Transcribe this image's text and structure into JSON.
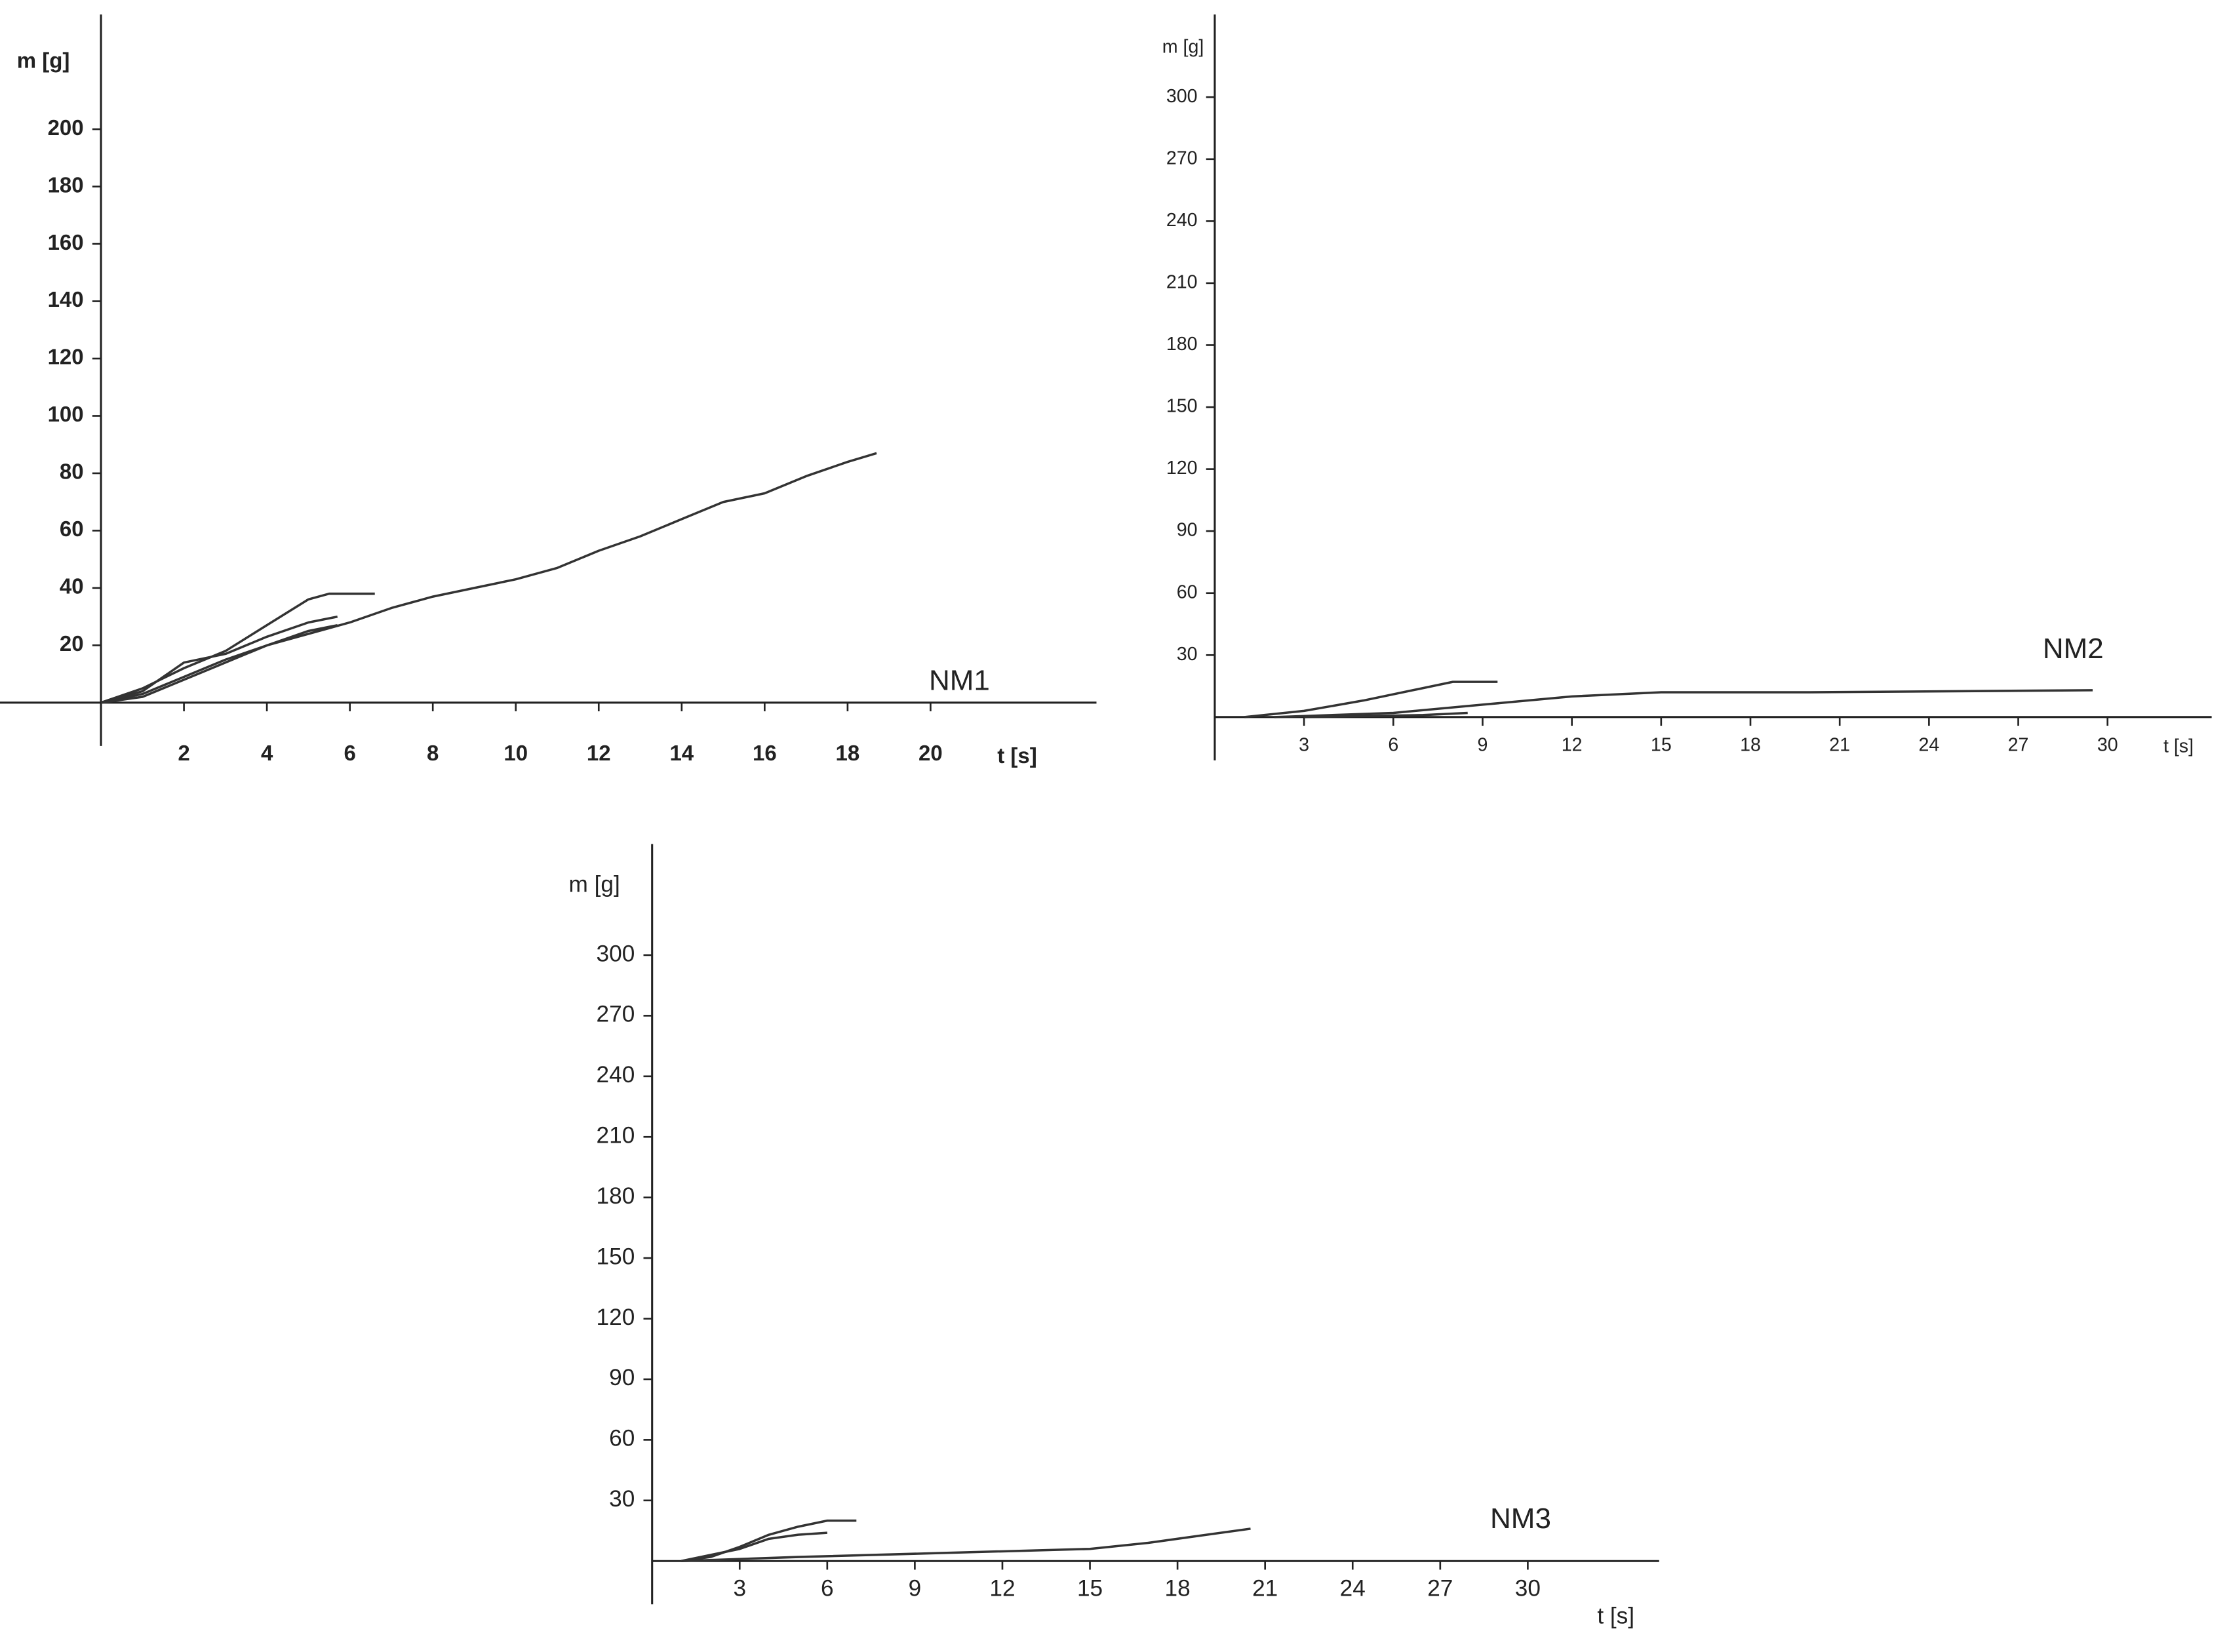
{
  "chart_data": [
    {
      "type": "line",
      "annotation": "NM1",
      "ylabel": "m [g]",
      "xlabel": "t [s]",
      "bold": true,
      "xlim": [
        0,
        24
      ],
      "ylim": [
        0,
        240
      ],
      "xticks": [
        2,
        4,
        6,
        8,
        10,
        12,
        14,
        16,
        18,
        20
      ],
      "yticks": [
        20,
        40,
        60,
        80,
        100,
        120,
        140,
        160,
        180,
        200
      ],
      "series": [
        {
          "color": "#333333",
          "x": [
            0,
            1,
            2,
            3,
            4,
            5,
            6,
            7,
            8,
            9,
            10,
            11,
            12,
            13,
            14,
            15,
            16,
            17,
            18,
            18.7
          ],
          "values": [
            0,
            3,
            9,
            15,
            20,
            24,
            28,
            33,
            37,
            40,
            43,
            47,
            53,
            58,
            64,
            70,
            73,
            79,
            84,
            87
          ]
        },
        {
          "color": "#333333",
          "x": [
            0,
            1,
            2,
            3,
            4,
            5,
            5.5,
            6.6
          ],
          "values": [
            0,
            5,
            12,
            18,
            27,
            36,
            38,
            38
          ]
        },
        {
          "color": "#333333",
          "x": [
            0,
            1,
            2,
            3,
            4,
            5,
            5.7
          ],
          "values": [
            0,
            4,
            14,
            17,
            23,
            28,
            30
          ]
        },
        {
          "color": "#333333",
          "x": [
            0,
            1,
            2,
            3,
            4,
            5,
            5.7
          ],
          "values": [
            0,
            2,
            8,
            14,
            20,
            25,
            27
          ]
        }
      ]
    },
    {
      "type": "line",
      "annotation": "NM2",
      "ylabel": "m [g]",
      "xlabel": "t [s]",
      "bold": false,
      "xlim": [
        0,
        33.5
      ],
      "ylim": [
        0,
        340
      ],
      "xticks": [
        3,
        6,
        9,
        12,
        15,
        18,
        21,
        24,
        27,
        30
      ],
      "yticks": [
        30,
        60,
        90,
        120,
        150,
        180,
        210,
        240,
        270,
        300
      ],
      "series": [
        {
          "color": "#333333",
          "x": [
            1,
            3,
            5,
            7,
            8,
            9.5
          ],
          "values": [
            0,
            3,
            8,
            14,
            17,
            17
          ]
        },
        {
          "color": "#333333",
          "x": [
            2,
            6,
            9,
            12,
            15,
            20,
            29.5
          ],
          "values": [
            0,
            2,
            6,
            10,
            12,
            12,
            13
          ]
        },
        {
          "color": "#333333",
          "x": [
            3,
            7,
            8.5
          ],
          "values": [
            0,
            1,
            2
          ]
        }
      ]
    },
    {
      "type": "line",
      "annotation": "NM3",
      "ylabel": "m [g]",
      "xlabel": "t [s]",
      "bold": false,
      "xlim": [
        0,
        34.5
      ],
      "ylim": [
        0,
        355
      ],
      "xticks": [
        3,
        6,
        9,
        12,
        15,
        18,
        21,
        24,
        27,
        30
      ],
      "yticks": [
        30,
        60,
        90,
        120,
        150,
        180,
        210,
        240,
        270,
        300
      ],
      "series": [
        {
          "color": "#333333",
          "x": [
            1,
            2,
            3,
            4,
            5,
            6,
            7
          ],
          "values": [
            0,
            2,
            7,
            13,
            17,
            20,
            20
          ]
        },
        {
          "color": "#333333",
          "x": [
            1,
            3,
            4,
            5,
            6
          ],
          "values": [
            0,
            6,
            11,
            13,
            14
          ]
        },
        {
          "color": "#333333",
          "x": [
            1,
            5,
            10,
            15,
            17,
            19,
            20.5
          ],
          "values": [
            0,
            2,
            4,
            6,
            9,
            13,
            16
          ]
        }
      ]
    }
  ]
}
